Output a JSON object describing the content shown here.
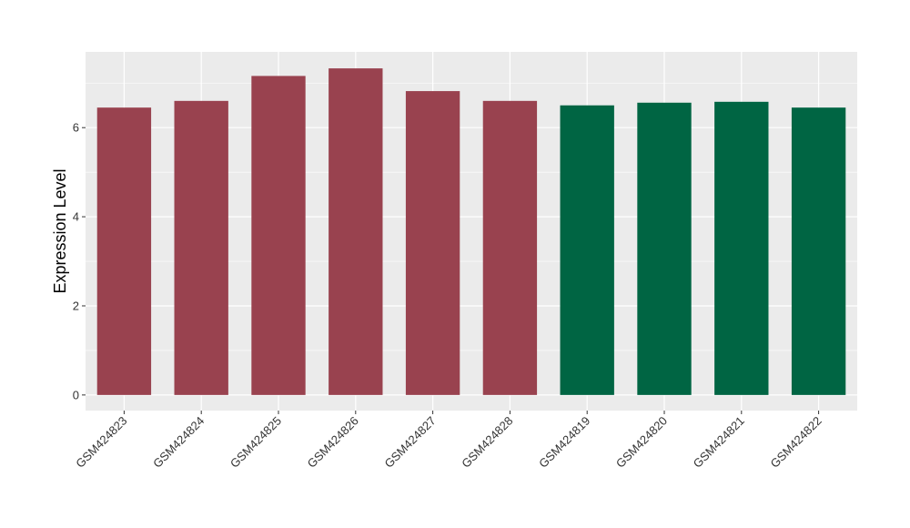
{
  "chart_data": {
    "type": "bar",
    "ylabel": "Expression Level",
    "xlabel": "",
    "title": "",
    "ylim": [
      -0.35,
      7.7
    ],
    "yticks": [
      0,
      2,
      4,
      6
    ],
    "grid": true,
    "panel_color": "#EBEBEB",
    "grid_color": "#FFFFFF",
    "categories": [
      "GSM424823",
      "GSM424824",
      "GSM424825",
      "GSM424826",
      "GSM424827",
      "GSM424828",
      "GSM424819",
      "GSM424820",
      "GSM424821",
      "GSM424822"
    ],
    "values": [
      6.45,
      6.6,
      7.16,
      7.33,
      6.82,
      6.6,
      6.5,
      6.56,
      6.58,
      6.45
    ],
    "bar_colors": [
      "#99424F",
      "#99424F",
      "#99424F",
      "#99424F",
      "#99424F",
      "#99424F",
      "#006543",
      "#006543",
      "#006543",
      "#006543"
    ]
  }
}
